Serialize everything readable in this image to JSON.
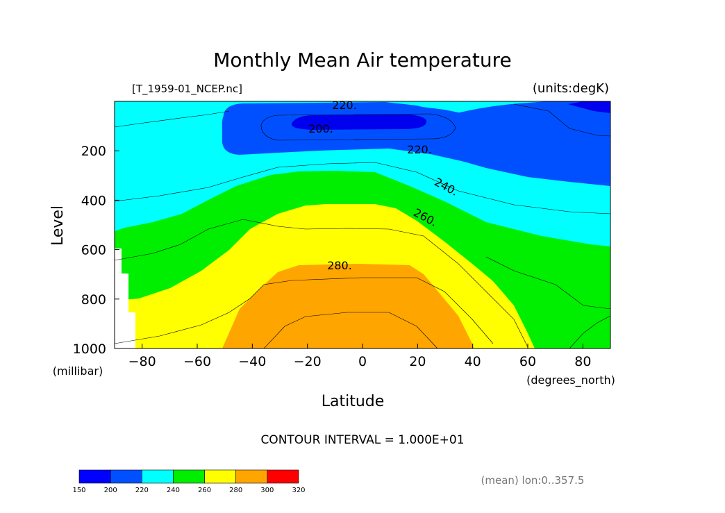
{
  "chart_data": {
    "type": "contour",
    "title": "Monthly Mean Air temperature",
    "file_label": "[T_1959-01_NCEP.nc]",
    "units_label": "(units:degK)",
    "xlabel": "Latitude",
    "x_units": "(degrees_north)",
    "ylabel": "Level",
    "y_units": "(millibar)",
    "xlim": [
      -90,
      90
    ],
    "ylim": [
      1000,
      0
    ],
    "x_ticks": [
      "-80",
      "-60",
      "-40",
      "-20",
      "0",
      "20",
      "40",
      "60",
      "80"
    ],
    "y_ticks": [
      "200",
      "400",
      "600",
      "800",
      "1000"
    ],
    "contour_interval_text": "CONTOUR INTERVAL = 1.000E+01",
    "contour_labels": [
      "220.",
      "200.",
      "220.",
      "240.",
      "260.",
      "280."
    ],
    "averaging_note": "(mean) lon:0..357.5",
    "colorbar": {
      "levels": [
        "150",
        "200",
        "220",
        "240",
        "260",
        "280",
        "300",
        "320"
      ],
      "colors": [
        "#0000ff",
        "#0050ff",
        "#00ffff",
        "#00ee00",
        "#ffff00",
        "#ffa500",
        "#ff0000"
      ]
    }
  }
}
